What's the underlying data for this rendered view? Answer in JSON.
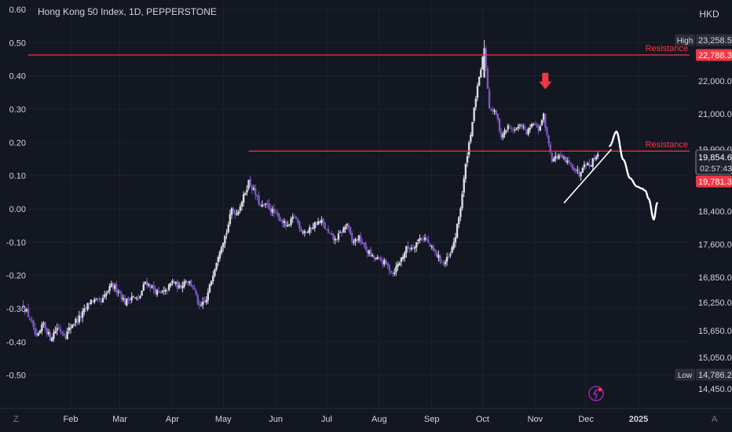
{
  "chart_data": {
    "type": "candlestick",
    "title": "Hong Kong 50 Index, 1D, PEPPERSTONE",
    "currency": "HKD",
    "left_axis": {
      "ticks": [
        0.6,
        0.5,
        0.4,
        0.3,
        0.2,
        0.1,
        0.0,
        -0.1,
        -0.2,
        -0.3,
        -0.4,
        -0.5
      ],
      "tick_labels": [
        "0.60",
        "0.50",
        "0.40",
        "0.30",
        "0.20",
        "0.10",
        "0.00",
        "-0.10",
        "-0.20",
        "-0.30",
        "-0.40",
        "-0.50"
      ],
      "ylim": [
        -0.55,
        0.61
      ]
    },
    "right_axis": {
      "ticks": [
        22000,
        21000,
        19900,
        18400,
        17600,
        16850,
        16250,
        15650,
        15050,
        14450
      ],
      "tick_labels": [
        "22,000.0",
        "21,000.0",
        "19,900.0",
        "18,400.0",
        "17,600.0",
        "16,850.0",
        "16,250.0",
        "15,650.0",
        "15,050.0",
        "14,450.0"
      ]
    },
    "x_axis": {
      "labels": [
        "Feb",
        "Mar",
        "Apr",
        "May",
        "Jun",
        "Jul",
        "Aug",
        "Sep",
        "Oct",
        "Nov",
        "Dec",
        "2025"
      ],
      "label_days": [
        32,
        61,
        92,
        122,
        153,
        183,
        214,
        245,
        275,
        306,
        336,
        367
      ]
    },
    "series": [
      {
        "kind": "ohlc_keyframes",
        "points": [
          {
            "day": 4,
            "close": 16180
          },
          {
            "day": 8,
            "close": 15900
          },
          {
            "day": 12,
            "close": 15450
          },
          {
            "day": 16,
            "close": 15800
          },
          {
            "day": 20,
            "close": 15480
          },
          {
            "day": 24,
            "close": 15720
          },
          {
            "day": 29,
            "close": 15550
          },
          {
            "day": 33,
            "close": 15800
          },
          {
            "day": 38,
            "close": 15950
          },
          {
            "day": 44,
            "close": 16300
          },
          {
            "day": 50,
            "close": 16250
          },
          {
            "day": 56,
            "close": 16650
          },
          {
            "day": 60,
            "close": 16550
          },
          {
            "day": 64,
            "close": 16250
          },
          {
            "day": 68,
            "close": 16400
          },
          {
            "day": 72,
            "close": 16300
          },
          {
            "day": 76,
            "close": 16750
          },
          {
            "day": 80,
            "close": 16600
          },
          {
            "day": 84,
            "close": 16450
          },
          {
            "day": 88,
            "close": 16500
          },
          {
            "day": 92,
            "close": 16750
          },
          {
            "day": 96,
            "close": 16600
          },
          {
            "day": 100,
            "close": 16800
          },
          {
            "day": 104,
            "close": 16650
          },
          {
            "day": 108,
            "close": 16120
          },
          {
            "day": 112,
            "close": 16300
          },
          {
            "day": 116,
            "close": 16950
          },
          {
            "day": 120,
            "close": 17500
          },
          {
            "day": 124,
            "close": 17900
          },
          {
            "day": 127,
            "close": 18450
          },
          {
            "day": 130,
            "close": 18350
          },
          {
            "day": 134,
            "close": 18750
          },
          {
            "day": 137,
            "close": 19120
          },
          {
            "day": 140,
            "close": 18900
          },
          {
            "day": 144,
            "close": 18500
          },
          {
            "day": 148,
            "close": 18550
          },
          {
            "day": 152,
            "close": 18350
          },
          {
            "day": 156,
            "close": 18200
          },
          {
            "day": 160,
            "close": 18000
          },
          {
            "day": 164,
            "close": 18300
          },
          {
            "day": 168,
            "close": 17950
          },
          {
            "day": 172,
            "close": 17900
          },
          {
            "day": 176,
            "close": 18100
          },
          {
            "day": 180,
            "close": 18150
          },
          {
            "day": 184,
            "close": 17850
          },
          {
            "day": 188,
            "close": 17700
          },
          {
            "day": 192,
            "close": 17900
          },
          {
            "day": 195,
            "close": 18100
          },
          {
            "day": 198,
            "close": 17650
          },
          {
            "day": 202,
            "close": 17750
          },
          {
            "day": 206,
            "close": 17500
          },
          {
            "day": 210,
            "close": 17300
          },
          {
            "day": 214,
            "close": 17250
          },
          {
            "day": 218,
            "close": 17150
          },
          {
            "day": 222,
            "close": 16950
          },
          {
            "day": 226,
            "close": 17200
          },
          {
            "day": 230,
            "close": 17500
          },
          {
            "day": 234,
            "close": 17550
          },
          {
            "day": 238,
            "close": 17750
          },
          {
            "day": 241,
            "close": 17750
          },
          {
            "day": 244,
            "close": 17550
          },
          {
            "day": 248,
            "close": 17350
          },
          {
            "day": 252,
            "close": 17150
          },
          {
            "day": 256,
            "close": 17350
          },
          {
            "day": 259,
            "close": 17800
          },
          {
            "day": 262,
            "close": 18500
          },
          {
            "day": 265,
            "close": 19500
          },
          {
            "day": 268,
            "close": 20400
          },
          {
            "day": 271,
            "close": 21500
          },
          {
            "day": 274,
            "close": 22350
          },
          {
            "day": 276,
            "close": 23000
          },
          {
            "day": 279,
            "close": 21200
          },
          {
            "day": 283,
            "close": 21000
          },
          {
            "day": 286,
            "close": 20300
          },
          {
            "day": 290,
            "close": 20600
          },
          {
            "day": 294,
            "close": 20500
          },
          {
            "day": 298,
            "close": 20650
          },
          {
            "day": 301,
            "close": 20400
          },
          {
            "day": 305,
            "close": 20700
          },
          {
            "day": 308,
            "close": 20500
          },
          {
            "day": 311,
            "close": 20950
          },
          {
            "day": 313,
            "close": 20300
          },
          {
            "day": 316,
            "close": 19650
          },
          {
            "day": 320,
            "close": 19750
          },
          {
            "day": 324,
            "close": 19600
          },
          {
            "day": 328,
            "close": 19500
          },
          {
            "day": 332,
            "close": 19300
          },
          {
            "day": 335,
            "close": 19600
          },
          {
            "day": 338,
            "close": 19500
          },
          {
            "day": 341,
            "close": 19700
          },
          {
            "day": 343,
            "close": 19781.3
          }
        ]
      }
    ],
    "resistance_levels": [
      {
        "label": "Resistance",
        "price": 22788.3
      },
      {
        "label": "Resistance",
        "price": 19854.6
      }
    ],
    "arrow_marker": {
      "day": 312,
      "price": 21650,
      "color": "#f23645"
    },
    "projection_path": [
      {
        "day": 350,
        "price": 20000
      },
      {
        "day": 354,
        "price": 20450
      },
      {
        "day": 358,
        "price": 19650
      },
      {
        "day": 362,
        "price": 19200
      },
      {
        "day": 366,
        "price": 19000
      },
      {
        "day": 369,
        "price": 18950
      },
      {
        "day": 371,
        "price": 18900
      },
      {
        "day": 373,
        "price": 18700
      },
      {
        "day": 376,
        "price": 18200
      },
      {
        "day": 378,
        "price": 18600
      }
    ],
    "trendline": {
      "start": {
        "day": 323,
        "price": 18600
      },
      "end": {
        "day": 351,
        "price": 19900
      }
    },
    "price_tags": {
      "high": {
        "label": "High",
        "value": "23,258.5"
      },
      "resistance_price": {
        "value": "22,788.3"
      },
      "last_price": {
        "value": "19,854.6",
        "countdown": "02:57:43"
      },
      "current_price": {
        "value": "19,781.3"
      },
      "low": {
        "label": "Low",
        "value": "14,786.2"
      }
    },
    "colors": {
      "background": "#131722",
      "grid": "#1e2230",
      "up": "#d9dbe1",
      "down": "#7e57c2",
      "resistance": "#f23645",
      "projection": "#ffffff",
      "price_tag": "#f23645",
      "high_low_tag": "#2a2e39",
      "brand": "#9c27b0"
    }
  },
  "ui": {
    "currency_button": "HKD",
    "corner_left": "Z",
    "corner_right": "A"
  }
}
